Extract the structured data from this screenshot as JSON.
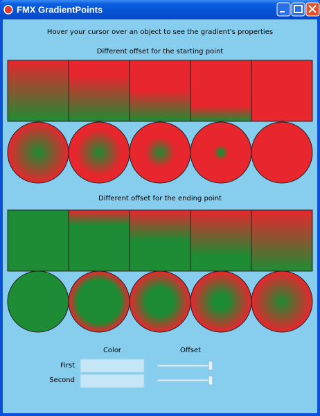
{
  "window": {
    "title": "FMX GradientPoints"
  },
  "hint": "Hover your cursor over an object to see the gradient's properties",
  "sections": [
    "Different offset for the starting point",
    "Different offset for the ending point"
  ],
  "controls": {
    "color_header": "Color",
    "offset_header": "Offset",
    "rows": [
      "First",
      "Second"
    ]
  }
}
